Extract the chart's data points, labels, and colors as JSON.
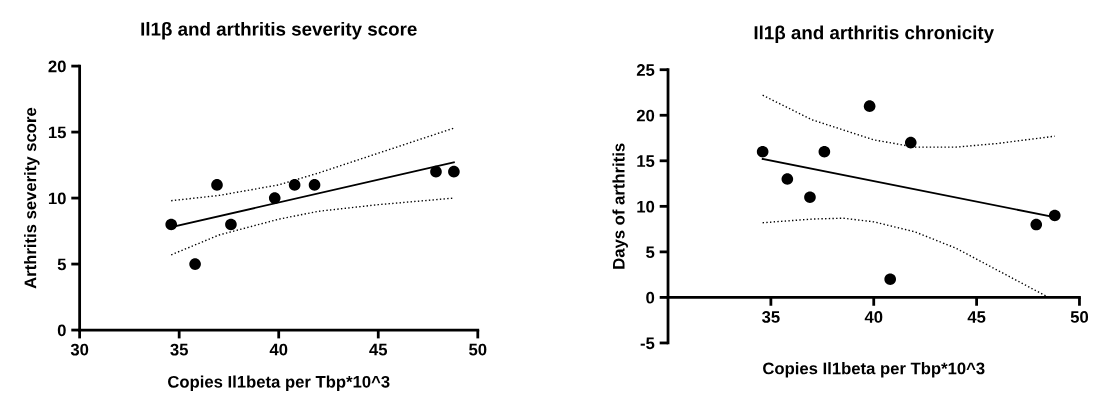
{
  "chart_data": [
    {
      "type": "scatter",
      "title": "Il1β and arthritis severity score",
      "xlabel": "Copies Il1beta per Tbp*10^3",
      "ylabel": "Arthritis severity score",
      "xlim": [
        30,
        50
      ],
      "xticks": [
        30,
        35,
        40,
        45,
        50
      ],
      "ylim": [
        0,
        20
      ],
      "yticks": [
        0,
        5,
        10,
        15,
        20
      ],
      "grid": false,
      "legend": false,
      "series": [
        {
          "marker": "circle",
          "color": "#000000",
          "x": [
            34.6,
            35.8,
            36.9,
            37.6,
            39.8,
            40.8,
            41.8,
            47.9,
            48.8
          ],
          "values": [
            8,
            5,
            11,
            8,
            10,
            11,
            11,
            12,
            12
          ]
        },
        {
          "type": "line",
          "marker": "none",
          "color": "#000000",
          "line_style": "solid",
          "x": [
            34.6,
            48.8
          ],
          "values": [
            7.8,
            12.7
          ]
        },
        {
          "type": "line",
          "marker": "none",
          "color": "#000000",
          "line_style": "dotted",
          "x": [
            34.6,
            37,
            40,
            42,
            45,
            48.8
          ],
          "values": [
            9.8,
            10.2,
            11.0,
            11.9,
            13.4,
            15.3
          ]
        },
        {
          "type": "line",
          "marker": "none",
          "color": "#000000",
          "line_style": "dotted",
          "x": [
            34.6,
            37,
            40,
            42,
            45,
            48.8
          ],
          "values": [
            5.7,
            7.2,
            8.4,
            9.0,
            9.5,
            10.0
          ]
        }
      ]
    },
    {
      "type": "scatter",
      "title": "Il1β and arthritis chronicity",
      "xlabel": "Copies Il1beta per Tbp*10^3",
      "ylabel": "Days of arthritis",
      "xlim": [
        30,
        50
      ],
      "xticks": [
        35,
        40,
        45,
        50
      ],
      "ylim": [
        -5,
        25
      ],
      "yticks": [
        -5,
        0,
        5,
        10,
        15,
        20,
        25
      ],
      "grid": false,
      "legend": false,
      "series": [
        {
          "marker": "circle",
          "color": "#000000",
          "x": [
            34.6,
            35.8,
            36.9,
            37.6,
            39.8,
            40.8,
            41.8,
            47.9,
            48.8
          ],
          "values": [
            16,
            13,
            11,
            16,
            21,
            2,
            17,
            8,
            9
          ]
        },
        {
          "type": "line",
          "marker": "none",
          "color": "#000000",
          "line_style": "solid",
          "x": [
            34.6,
            48.8
          ],
          "values": [
            15.2,
            8.8
          ]
        },
        {
          "type": "line",
          "marker": "none",
          "color": "#000000",
          "line_style": "dotted",
          "x": [
            34.6,
            37,
            40,
            42,
            44,
            46,
            48.8
          ],
          "values": [
            22.2,
            19.5,
            17.3,
            16.5,
            16.5,
            16.9,
            17.7
          ]
        },
        {
          "type": "line",
          "marker": "none",
          "color": "#000000",
          "line_style": "dotted",
          "x": [
            34.6,
            37,
            38.5,
            40,
            42,
            44,
            46,
            48.5
          ],
          "values": [
            8.2,
            8.6,
            8.7,
            8.3,
            7.2,
            5.4,
            3.0,
            0.0
          ]
        }
      ]
    }
  ]
}
